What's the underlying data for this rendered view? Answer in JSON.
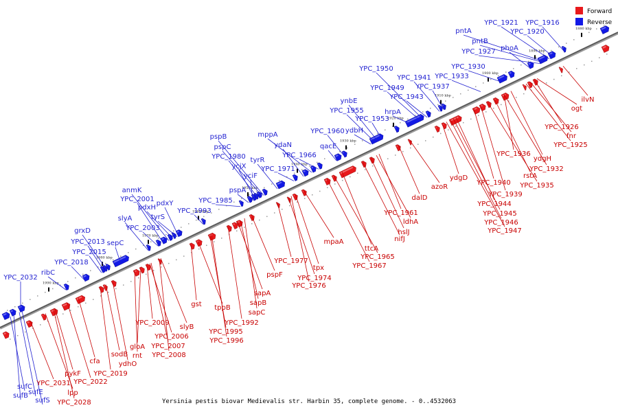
{
  "caption": "Yersinia pestis biovar Medievalis str. Harbin 35, complete genome. - 0..4532063",
  "legend": {
    "forward": "Forward",
    "reverse": "Reverse"
  },
  "colors": {
    "forward": "#e8191c",
    "reverse": "#1219e6",
    "forward_label": "#c80000",
    "reverse_label": "#1f1fd0",
    "axis": "#777777"
  },
  "ticks": [
    "1990 kbp",
    "1980 kbp",
    "1970 kbp",
    "1960 kbp",
    "1950 kbp",
    "1940 kbp",
    "1930 kbp",
    "1920 kbp",
    "1910 kbp",
    "1900 kbp",
    "1890 kbp",
    "1880 kbp"
  ],
  "reverse_genes": [
    "YPC_2032",
    "sufC",
    "sufB",
    "sufE",
    "sufS",
    "ribC",
    "YPC_2018",
    "YPC_2015",
    "YPC_2013",
    "grxD",
    "sepC",
    "slyA",
    "YPC_2003",
    "YPC_2001",
    "anmK",
    "pdxH",
    "tyrS",
    "pdxY",
    "YPC_1993",
    "YPC_1985",
    "pspA",
    "yciF",
    "ycjX",
    "YPC_1980",
    "pspC",
    "pspB",
    "tyrR",
    "YPC_1971",
    "ydaN",
    "mppA",
    "YPC_1966",
    "qacE",
    "YPC_1960",
    "ydbH",
    "YPC_1955",
    "ynbE",
    "YPC_1953",
    "hrpA",
    "YPC_1949",
    "YPC_1950",
    "YPC_1943",
    "YPC_1941",
    "YPC_1937",
    "YPC_1933",
    "YPC_1930",
    "phoA",
    "YPC_1927",
    "pntB",
    "pntA",
    "YPC_1921",
    "YPC_1920",
    "YPC_1916"
  ],
  "forward_genes": [
    "YPC_2031",
    "lpp",
    "YPC_2028",
    "pykF",
    "YPC_2022",
    "cfa",
    "YPC_2019",
    "sodB",
    "ydhO",
    "rnt",
    "gloA",
    "YPC_2009",
    "YPC_2006",
    "YPC_2007",
    "YPC_2008",
    "slyB",
    "gst",
    "tppB",
    "YPC_1995",
    "YPC_1996",
    "YPC_1992",
    "sapA",
    "sapB",
    "sapC",
    "pspF",
    "YPC_1977",
    "YPC_1974",
    "YPC_1976",
    "tpx",
    "mpaA",
    "YPC_1967",
    "YPC_1965",
    "ttcA",
    "nifJ",
    "hslJ",
    "ldhA",
    "YPC_1961",
    "dalD",
    "azoR",
    "ydgD",
    "YPC_1947",
    "YPC_1946",
    "YPC_1945",
    "YPC_1944",
    "YPC_1940",
    "YPC_1939",
    "YPC_1935",
    "rstA",
    "YPC_1932",
    "ydgH",
    "YPC_1936",
    "YPC_1925",
    "fnr",
    "YPC_1926",
    "ogt",
    "ilvN"
  ]
}
